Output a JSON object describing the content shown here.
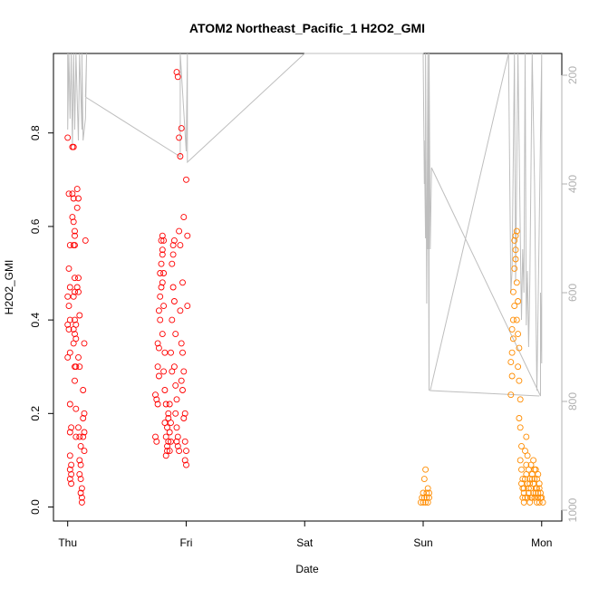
{
  "chart_data": {
    "type": "scatter",
    "title": "ATOM2 Northeast_Pacific_1 H2O2_GMI",
    "xlabel": "Date",
    "ylabel": "H2O2_GMI",
    "x_tick_labels": [
      "Thu",
      "Fri",
      "Sat",
      "Sun",
      "Mon"
    ],
    "y_ticks": [
      0.0,
      0.2,
      0.4,
      0.6,
      0.8
    ],
    "y_tick_labels": [
      "0.0",
      "0.2",
      "0.4",
      "0.6",
      "0.8"
    ],
    "ylim": [
      -0.03,
      0.97
    ],
    "secondary_axis": {
      "side": "right",
      "ticks": [
        200,
        400,
        600,
        800,
        1000
      ],
      "tick_labels": [
        "200",
        "400",
        "600",
        "800",
        "1000"
      ],
      "reversed": true,
      "range": [
        160,
        1020
      ],
      "color": "#b0b0b0"
    },
    "xlim": [
      -0.12,
      4.17
    ],
    "marker_colors": {
      "red": "#ff0000",
      "orange": "#ff8c00",
      "line": "#bebebe"
    },
    "series": [
      {
        "color": "red",
        "points": [
          [
            0.0,
            0.79
          ],
          [
            0.01,
            0.67
          ],
          [
            0.02,
            0.56
          ],
          [
            0.01,
            0.51
          ],
          [
            0.02,
            0.47
          ],
          [
            0.0,
            0.45
          ],
          [
            0.01,
            0.43
          ],
          [
            0.02,
            0.4
          ],
          [
            0.0,
            0.39
          ],
          [
            0.01,
            0.38
          ],
          [
            0.02,
            0.33
          ],
          [
            0.0,
            0.32
          ],
          [
            0.02,
            0.22
          ],
          [
            0.03,
            0.17
          ],
          [
            0.02,
            0.16
          ],
          [
            0.02,
            0.11
          ],
          [
            0.03,
            0.09
          ],
          [
            0.02,
            0.08
          ],
          [
            0.03,
            0.07
          ],
          [
            0.02,
            0.06
          ],
          [
            0.03,
            0.05
          ],
          [
            0.04,
            0.77
          ],
          [
            0.05,
            0.77
          ],
          [
            0.04,
            0.67
          ],
          [
            0.05,
            0.66
          ],
          [
            0.04,
            0.62
          ],
          [
            0.05,
            0.61
          ],
          [
            0.06,
            0.59
          ],
          [
            0.06,
            0.58
          ],
          [
            0.06,
            0.56
          ],
          [
            0.05,
            0.56
          ],
          [
            0.06,
            0.49
          ],
          [
            0.06,
            0.46
          ],
          [
            0.05,
            0.45
          ],
          [
            0.06,
            0.4
          ],
          [
            0.07,
            0.39
          ],
          [
            0.05,
            0.38
          ],
          [
            0.06,
            0.37
          ],
          [
            0.07,
            0.36
          ],
          [
            0.05,
            0.35
          ],
          [
            0.06,
            0.3
          ],
          [
            0.07,
            0.3
          ],
          [
            0.06,
            0.27
          ],
          [
            0.07,
            0.21
          ],
          [
            0.07,
            0.15
          ],
          [
            0.08,
            0.68
          ],
          [
            0.09,
            0.66
          ],
          [
            0.08,
            0.64
          ],
          [
            0.09,
            0.49
          ],
          [
            0.08,
            0.47
          ],
          [
            0.09,
            0.46
          ],
          [
            0.1,
            0.41
          ],
          [
            0.09,
            0.32
          ],
          [
            0.1,
            0.3
          ],
          [
            0.09,
            0.17
          ],
          [
            0.1,
            0.15
          ],
          [
            0.11,
            0.13
          ],
          [
            0.1,
            0.1
          ],
          [
            0.11,
            0.09
          ],
          [
            0.1,
            0.07
          ],
          [
            0.11,
            0.06
          ],
          [
            0.12,
            0.04
          ],
          [
            0.11,
            0.03
          ],
          [
            0.12,
            0.02
          ],
          [
            0.12,
            0.01
          ],
          [
            0.13,
            0.25
          ],
          [
            0.14,
            0.2
          ],
          [
            0.13,
            0.19
          ],
          [
            0.14,
            0.16
          ],
          [
            0.13,
            0.15
          ],
          [
            0.14,
            0.35
          ],
          [
            0.14,
            0.12
          ],
          [
            0.15,
            0.57
          ],
          [
            0.74,
            0.15
          ],
          [
            0.75,
            0.14
          ],
          [
            0.74,
            0.24
          ],
          [
            0.75,
            0.23
          ],
          [
            0.76,
            0.22
          ],
          [
            0.76,
            0.3
          ],
          [
            0.77,
            0.28
          ],
          [
            0.76,
            0.35
          ],
          [
            0.77,
            0.34
          ],
          [
            0.78,
            0.4
          ],
          [
            0.77,
            0.42
          ],
          [
            0.78,
            0.45
          ],
          [
            0.79,
            0.47
          ],
          [
            0.78,
            0.5
          ],
          [
            0.79,
            0.52
          ],
          [
            0.8,
            0.55
          ],
          [
            0.79,
            0.57
          ],
          [
            0.8,
            0.58
          ],
          [
            0.81,
            0.57
          ],
          [
            0.8,
            0.54
          ],
          [
            0.81,
            0.5
          ],
          [
            0.8,
            0.48
          ],
          [
            0.81,
            0.43
          ],
          [
            0.8,
            0.37
          ],
          [
            0.82,
            0.33
          ],
          [
            0.81,
            0.29
          ],
          [
            0.82,
            0.25
          ],
          [
            0.83,
            0.22
          ],
          [
            0.82,
            0.18
          ],
          [
            0.83,
            0.15
          ],
          [
            0.84,
            0.13
          ],
          [
            0.83,
            0.11
          ],
          [
            0.84,
            0.12
          ],
          [
            0.85,
            0.14
          ],
          [
            0.84,
            0.17
          ],
          [
            0.85,
            0.19
          ],
          [
            0.86,
            0.22
          ],
          [
            0.85,
            0.2
          ],
          [
            0.86,
            0.16
          ],
          [
            0.87,
            0.14
          ],
          [
            0.86,
            0.12
          ],
          [
            0.87,
            0.18
          ],
          [
            0.88,
            0.29
          ],
          [
            0.87,
            0.33
          ],
          [
            0.88,
            0.4
          ],
          [
            0.89,
            0.47
          ],
          [
            0.88,
            0.52
          ],
          [
            0.89,
            0.56
          ],
          [
            0.9,
            0.57
          ],
          [
            0.89,
            0.54
          ],
          [
            0.9,
            0.44
          ],
          [
            0.91,
            0.37
          ],
          [
            0.9,
            0.3
          ],
          [
            0.91,
            0.26
          ],
          [
            0.92,
            0.23
          ],
          [
            0.91,
            0.2
          ],
          [
            0.92,
            0.17
          ],
          [
            0.93,
            0.15
          ],
          [
            0.92,
            0.14
          ],
          [
            0.93,
            0.13
          ],
          [
            0.94,
            0.12
          ],
          [
            0.92,
            0.93
          ],
          [
            0.93,
            0.92
          ],
          [
            0.94,
            0.79
          ],
          [
            0.95,
            0.75
          ],
          [
            0.94,
            0.59
          ],
          [
            0.95,
            0.56
          ],
          [
            0.96,
            0.81
          ],
          [
            0.95,
            0.42
          ],
          [
            0.96,
            0.35
          ],
          [
            0.97,
            0.33
          ],
          [
            0.96,
            0.27
          ],
          [
            0.97,
            0.25
          ],
          [
            0.98,
            0.62
          ],
          [
            0.97,
            0.48
          ],
          [
            0.98,
            0.29
          ],
          [
            0.99,
            0.2
          ],
          [
            0.98,
            0.19
          ],
          [
            0.99,
            0.14
          ],
          [
            1.0,
            0.12
          ],
          [
            0.99,
            0.1
          ],
          [
            1.0,
            0.09
          ],
          [
            1.0,
            0.7
          ],
          [
            1.01,
            0.58
          ],
          [
            1.01,
            0.43
          ]
        ]
      },
      {
        "color": "orange",
        "points": [
          [
            2.98,
            0.01
          ],
          [
            2.99,
            0.02
          ],
          [
            3.0,
            0.01
          ],
          [
            3.01,
            0.02
          ],
          [
            3.0,
            0.03
          ],
          [
            3.01,
            0.06
          ],
          [
            3.02,
            0.08
          ],
          [
            3.02,
            0.01
          ],
          [
            3.03,
            0.03
          ],
          [
            3.03,
            0.02
          ],
          [
            3.04,
            0.04
          ],
          [
            3.04,
            0.01
          ],
          [
            3.05,
            0.03
          ],
          [
            3.05,
            0.02
          ],
          [
            3.74,
            0.24
          ],
          [
            3.75,
            0.28
          ],
          [
            3.74,
            0.31
          ],
          [
            3.75,
            0.33
          ],
          [
            3.76,
            0.36
          ],
          [
            3.75,
            0.38
          ],
          [
            3.76,
            0.4
          ],
          [
            3.77,
            0.43
          ],
          [
            3.76,
            0.46
          ],
          [
            3.77,
            0.51
          ],
          [
            3.78,
            0.53
          ],
          [
            3.77,
            0.57
          ],
          [
            3.78,
            0.58
          ],
          [
            3.79,
            0.59
          ],
          [
            3.78,
            0.55
          ],
          [
            3.79,
            0.48
          ],
          [
            3.8,
            0.44
          ],
          [
            3.79,
            0.4
          ],
          [
            3.8,
            0.37
          ],
          [
            3.81,
            0.34
          ],
          [
            3.8,
            0.3
          ],
          [
            3.81,
            0.27
          ],
          [
            3.82,
            0.23
          ],
          [
            3.81,
            0.19
          ],
          [
            3.82,
            0.17
          ],
          [
            3.83,
            0.13
          ],
          [
            3.82,
            0.1
          ],
          [
            3.83,
            0.08
          ],
          [
            3.84,
            0.06
          ],
          [
            3.83,
            0.05
          ],
          [
            3.84,
            0.04
          ],
          [
            3.85,
            0.03
          ],
          [
            3.84,
            0.02
          ],
          [
            3.85,
            0.01
          ],
          [
            3.86,
            0.02
          ],
          [
            3.85,
            0.04
          ],
          [
            3.86,
            0.06
          ],
          [
            3.87,
            0.09
          ],
          [
            3.86,
            0.12
          ],
          [
            3.87,
            0.15
          ],
          [
            3.88,
            0.11
          ],
          [
            3.87,
            0.07
          ],
          [
            3.88,
            0.05
          ],
          [
            3.89,
            0.03
          ],
          [
            3.88,
            0.02
          ],
          [
            3.89,
            0.04
          ],
          [
            3.9,
            0.06
          ],
          [
            3.89,
            0.08
          ],
          [
            3.9,
            0.05
          ],
          [
            3.91,
            0.02
          ],
          [
            3.9,
            0.01
          ],
          [
            3.91,
            0.04
          ],
          [
            3.92,
            0.07
          ],
          [
            3.91,
            0.09
          ],
          [
            3.92,
            0.06
          ],
          [
            3.93,
            0.03
          ],
          [
            3.92,
            0.02
          ],
          [
            3.93,
            0.05
          ],
          [
            3.94,
            0.08
          ],
          [
            3.93,
            0.1
          ],
          [
            3.94,
            0.06
          ],
          [
            3.95,
            0.03
          ],
          [
            3.94,
            0.02
          ],
          [
            3.95,
            0.04
          ],
          [
            3.96,
            0.06
          ],
          [
            3.95,
            0.08
          ],
          [
            3.96,
            0.04
          ],
          [
            3.97,
            0.02
          ],
          [
            3.96,
            0.01
          ],
          [
            3.97,
            0.03
          ],
          [
            3.98,
            0.05
          ],
          [
            3.97,
            0.07
          ],
          [
            3.98,
            0.04
          ],
          [
            3.99,
            0.02
          ],
          [
            3.98,
            0.01
          ],
          [
            3.99,
            0.03
          ],
          [
            4.0,
            0.02
          ],
          [
            4.01,
            0.01
          ]
        ]
      }
    ],
    "right_axis_trace": {
      "color": "line",
      "points": [
        [
          0.0,
          160
        ],
        [
          0.0,
          300
        ],
        [
          0.01,
          160
        ],
        [
          0.02,
          280
        ],
        [
          0.03,
          160
        ],
        [
          0.04,
          330
        ],
        [
          0.05,
          160
        ],
        [
          0.06,
          300
        ],
        [
          0.07,
          160
        ],
        [
          0.09,
          320
        ],
        [
          0.1,
          160
        ],
        [
          0.12,
          300
        ],
        [
          0.12,
          160
        ],
        [
          0.13,
          320
        ],
        [
          0.15,
          280
        ],
        [
          0.16,
          160
        ],
        [
          0.15,
          240
        ],
        [
          0.95,
          350
        ],
        [
          0.95,
          160
        ],
        [
          1.0,
          340
        ],
        [
          1.01,
          160
        ],
        [
          1.01,
          360
        ],
        [
          2.0,
          160
        ],
        [
          2.55,
          160
        ],
        [
          3.0,
          160
        ],
        [
          3.01,
          400
        ],
        [
          3.01,
          320
        ],
        [
          3.02,
          500
        ],
        [
          3.02,
          160
        ],
        [
          3.03,
          620
        ],
        [
          3.04,
          160
        ],
        [
          3.04,
          520
        ],
        [
          3.04,
          160
        ],
        [
          3.05,
          780
        ],
        [
          3.05,
          160
        ],
        [
          3.06,
          520
        ],
        [
          3.07,
          370
        ],
        [
          3.99,
          790
        ],
        [
          3.99,
          600
        ],
        [
          4.0,
          730
        ],
        [
          4.0,
          160
        ],
        [
          3.96,
          780
        ],
        [
          3.95,
          600
        ],
        [
          3.94,
          400
        ],
        [
          3.92,
          160
        ],
        [
          3.9,
          580
        ],
        [
          3.89,
          700
        ],
        [
          3.88,
          560
        ],
        [
          3.87,
          660
        ],
        [
          3.86,
          160
        ],
        [
          3.85,
          600
        ],
        [
          3.84,
          520
        ],
        [
          3.83,
          650
        ],
        [
          3.82,
          500
        ],
        [
          3.8,
          160
        ],
        [
          3.78,
          580
        ],
        [
          3.77,
          160
        ],
        [
          3.75,
          560
        ],
        [
          3.74,
          600
        ],
        [
          3.72,
          160
        ],
        [
          3.06,
          780
        ],
        [
          3.98,
          790
        ]
      ]
    }
  }
}
